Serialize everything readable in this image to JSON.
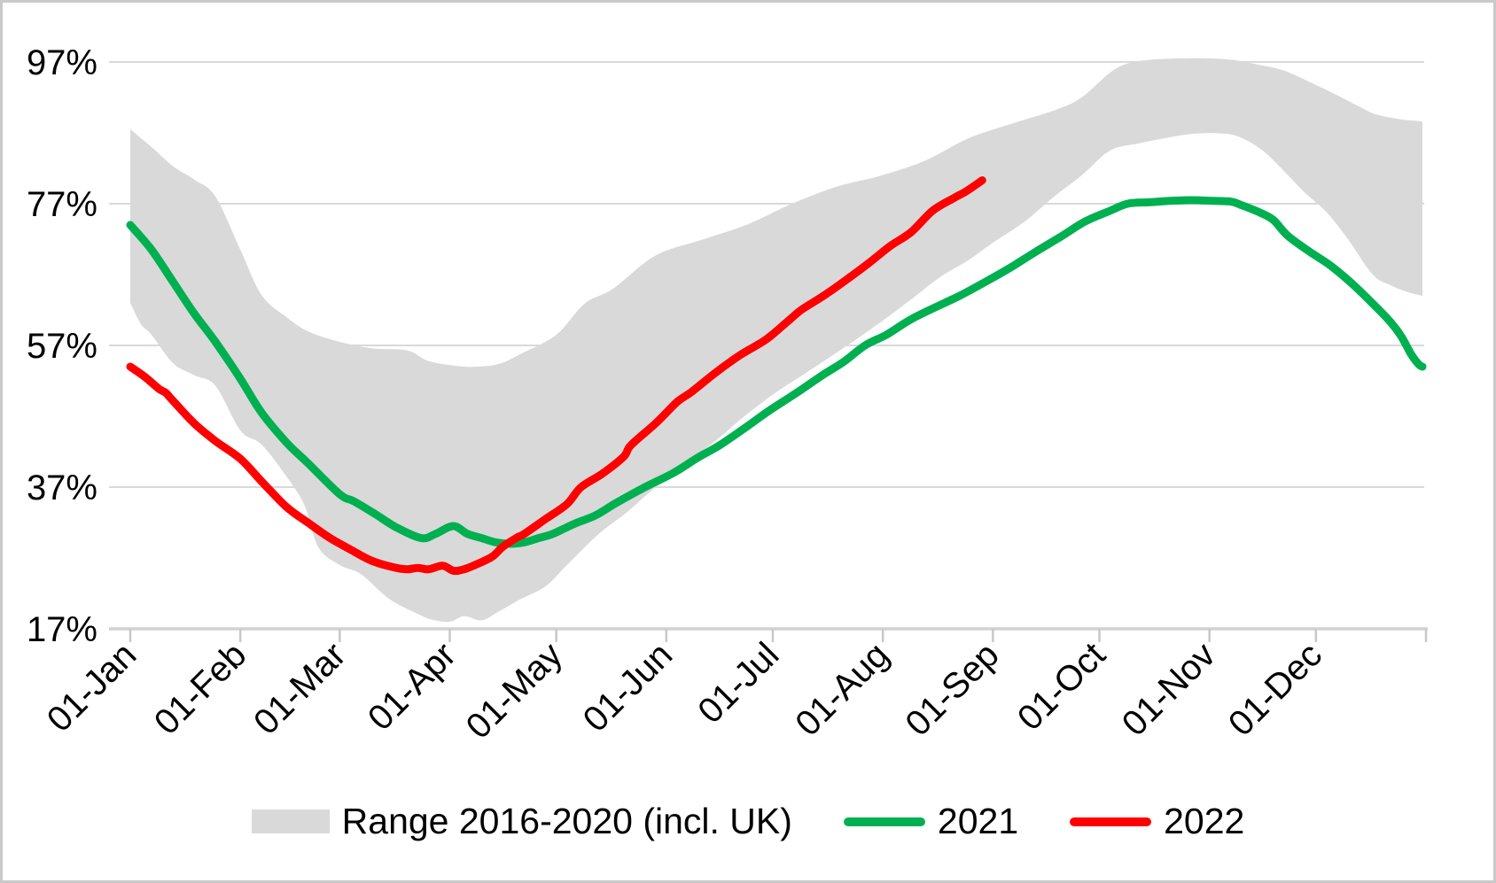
{
  "chart_data": {
    "type": "line",
    "title": "",
    "xlabel": "",
    "ylabel": "",
    "grid": "horizontal",
    "legend_position": "bottom",
    "y_axis": {
      "tick_labels": [
        "97%",
        "77%",
        "57%",
        "37%",
        "17%"
      ],
      "tick_values": [
        97,
        77,
        57,
        37,
        17
      ],
      "ylim": [
        17,
        97
      ]
    },
    "x_axis": {
      "tick_labels": [
        "01-Jan",
        "01-Feb",
        "01-Mar",
        "01-Apr",
        "01-May",
        "01-Jun",
        "01-Jul",
        "01-Aug",
        "01-Sep",
        "01-Oct",
        "01-Nov",
        "01-Dec"
      ],
      "tick_days": [
        0,
        31,
        59,
        90,
        120,
        151,
        181,
        212,
        243,
        273,
        304,
        334
      ],
      "domain_days": [
        0,
        364
      ],
      "end_tick_day": 365
    },
    "series": [
      {
        "name": "Range 2016-2020 (incl. UK)",
        "type": "band",
        "color": "#d9d9d9",
        "upper": [
          [
            0,
            87.5
          ],
          [
            6,
            85.0
          ],
          [
            12,
            82.3
          ],
          [
            18,
            80.4
          ],
          [
            24,
            78.0
          ],
          [
            31,
            70.5
          ],
          [
            37,
            64.1
          ],
          [
            44,
            61.0
          ],
          [
            50,
            59.0
          ],
          [
            59,
            57.5
          ],
          [
            68,
            56.6
          ],
          [
            78,
            56.3
          ],
          [
            84,
            54.8
          ],
          [
            92,
            54.1
          ],
          [
            98,
            54.0
          ],
          [
            104,
            54.4
          ],
          [
            110,
            55.8
          ],
          [
            120,
            58.5
          ],
          [
            128,
            62.9
          ],
          [
            136,
            65.0
          ],
          [
            148,
            69.7
          ],
          [
            161,
            71.9
          ],
          [
            174,
            74.1
          ],
          [
            186,
            76.9
          ],
          [
            199,
            79.4
          ],
          [
            211,
            80.9
          ],
          [
            224,
            83.1
          ],
          [
            236,
            86.2
          ],
          [
            249,
            88.4
          ],
          [
            261,
            90.3
          ],
          [
            268,
            92.0
          ],
          [
            276,
            95.5
          ],
          [
            281,
            96.8
          ],
          [
            287,
            97.3
          ],
          [
            295,
            97.5
          ],
          [
            305,
            97.5
          ],
          [
            312,
            97.2
          ],
          [
            318,
            96.6
          ],
          [
            325,
            95.8
          ],
          [
            333,
            94.0
          ],
          [
            340,
            92.3
          ],
          [
            347,
            90.5
          ],
          [
            351,
            89.6
          ],
          [
            358,
            88.9
          ],
          [
            364,
            88.6
          ]
        ],
        "lower": [
          [
            0,
            63.0
          ],
          [
            3,
            60.0
          ],
          [
            6,
            58.5
          ],
          [
            12,
            54.5
          ],
          [
            18,
            52.8
          ],
          [
            24,
            51.3
          ],
          [
            31,
            45.0
          ],
          [
            37,
            43.0
          ],
          [
            44,
            38.5
          ],
          [
            49,
            34.5
          ],
          [
            53,
            28.5
          ],
          [
            59,
            26.0
          ],
          [
            65,
            24.7
          ],
          [
            73,
            21.2
          ],
          [
            81,
            19.1
          ],
          [
            85,
            18.3
          ],
          [
            90,
            18.0
          ],
          [
            94,
            18.8
          ],
          [
            99,
            18.2
          ],
          [
            104,
            19.5
          ],
          [
            110,
            21.2
          ],
          [
            117,
            23.0
          ],
          [
            123,
            26.0
          ],
          [
            132,
            30.4
          ],
          [
            140,
            33.5
          ],
          [
            148,
            37.0
          ],
          [
            157,
            40.5
          ],
          [
            166,
            44.0
          ],
          [
            173,
            47.0
          ],
          [
            182,
            50.4
          ],
          [
            190,
            53.0
          ],
          [
            202,
            57.0
          ],
          [
            212,
            60.5
          ],
          [
            220,
            63.5
          ],
          [
            228,
            66.6
          ],
          [
            236,
            69.0
          ],
          [
            243,
            71.5
          ],
          [
            252,
            74.5
          ],
          [
            260,
            77.9
          ],
          [
            268,
            81.0
          ],
          [
            276,
            84.5
          ],
          [
            284,
            85.5
          ],
          [
            292,
            86.3
          ],
          [
            300,
            86.9
          ],
          [
            308,
            86.9
          ],
          [
            313,
            86.3
          ],
          [
            319,
            84.5
          ],
          [
            325,
            81.6
          ],
          [
            331,
            78.5
          ],
          [
            337,
            75.8
          ],
          [
            343,
            72.0
          ],
          [
            350,
            67.0
          ],
          [
            355,
            65.5
          ],
          [
            360,
            64.5
          ],
          [
            364,
            64.0
          ]
        ]
      },
      {
        "name": "2021",
        "type": "line",
        "color": "#00b050",
        "points": [
          [
            0,
            74.0
          ],
          [
            6,
            70.5
          ],
          [
            12,
            66.0
          ],
          [
            18,
            61.5
          ],
          [
            24,
            57.5
          ],
          [
            31,
            52.3
          ],
          [
            37,
            47.5
          ],
          [
            44,
            43.3
          ],
          [
            50,
            40.4
          ],
          [
            59,
            36.0
          ],
          [
            63,
            35.0
          ],
          [
            69,
            33.2
          ],
          [
            75,
            31.3
          ],
          [
            82,
            29.8
          ],
          [
            86,
            30.4
          ],
          [
            91,
            31.5
          ],
          [
            95,
            30.4
          ],
          [
            99,
            29.8
          ],
          [
            103,
            29.2
          ],
          [
            107,
            29.0
          ],
          [
            111,
            29.2
          ],
          [
            115,
            29.8
          ],
          [
            119,
            30.4
          ],
          [
            125,
            31.8
          ],
          [
            131,
            33.0
          ],
          [
            137,
            34.8
          ],
          [
            145,
            37.0
          ],
          [
            153,
            39.0
          ],
          [
            160,
            41.2
          ],
          [
            166,
            42.9
          ],
          [
            173,
            45.3
          ],
          [
            180,
            47.8
          ],
          [
            188,
            50.4
          ],
          [
            195,
            52.8
          ],
          [
            201,
            54.7
          ],
          [
            207,
            57.0
          ],
          [
            213,
            58.5
          ],
          [
            220,
            60.7
          ],
          [
            229,
            62.9
          ],
          [
            234,
            64.1
          ],
          [
            241,
            66.0
          ],
          [
            248,
            68.0
          ],
          [
            255,
            70.2
          ],
          [
            262,
            72.3
          ],
          [
            269,
            74.5
          ],
          [
            276,
            76.0
          ],
          [
            281,
            77.0
          ],
          [
            287,
            77.2
          ],
          [
            293,
            77.4
          ],
          [
            299,
            77.5
          ],
          [
            305,
            77.4
          ],
          [
            310,
            77.3
          ],
          [
            313,
            76.8
          ],
          [
            318,
            75.8
          ],
          [
            322,
            74.7
          ],
          [
            326,
            72.5
          ],
          [
            332,
            70.3
          ],
          [
            338,
            68.3
          ],
          [
            344,
            65.8
          ],
          [
            350,
            62.9
          ],
          [
            355,
            60.3
          ],
          [
            358,
            58.3
          ],
          [
            361,
            55.6
          ],
          [
            363,
            54.3
          ],
          [
            364,
            54.0
          ]
        ]
      },
      {
        "name": "2022",
        "type": "line",
        "color": "#ff0000",
        "points": [
          [
            0,
            54.0
          ],
          [
            4,
            52.6
          ],
          [
            8,
            50.9
          ],
          [
            10,
            50.3
          ],
          [
            12,
            49.2
          ],
          [
            18,
            46.0
          ],
          [
            24,
            43.5
          ],
          [
            31,
            41.0
          ],
          [
            37,
            37.8
          ],
          [
            44,
            34.2
          ],
          [
            50,
            32.0
          ],
          [
            56,
            29.9
          ],
          [
            62,
            28.2
          ],
          [
            68,
            26.6
          ],
          [
            74,
            25.7
          ],
          [
            78,
            25.4
          ],
          [
            81,
            25.6
          ],
          [
            84,
            25.4
          ],
          [
            88,
            25.9
          ],
          [
            91,
            25.2
          ],
          [
            94,
            25.4
          ],
          [
            98,
            26.2
          ],
          [
            102,
            27.2
          ],
          [
            105,
            28.6
          ],
          [
            109,
            29.9
          ],
          [
            111,
            30.4
          ],
          [
            117,
            32.5
          ],
          [
            123,
            34.6
          ],
          [
            127,
            37.0
          ],
          [
            133,
            38.9
          ],
          [
            139,
            41.3
          ],
          [
            141,
            42.9
          ],
          [
            148,
            46.0
          ],
          [
            154,
            49.0
          ],
          [
            158,
            50.4
          ],
          [
            165,
            53.2
          ],
          [
            172,
            55.7
          ],
          [
            179,
            57.8
          ],
          [
            185,
            60.3
          ],
          [
            189,
            62.0
          ],
          [
            195,
            63.9
          ],
          [
            201,
            66.0
          ],
          [
            208,
            68.6
          ],
          [
            214,
            71.0
          ],
          [
            220,
            73.0
          ],
          [
            226,
            76.0
          ],
          [
            232,
            77.8
          ],
          [
            235,
            78.6
          ],
          [
            238,
            79.6
          ],
          [
            240,
            80.3
          ]
        ]
      }
    ],
    "legend": {
      "items": [
        {
          "label": "Range 2016-2020 (incl. UK)",
          "color": "#d9d9d9",
          "swatch": "rect"
        },
        {
          "label": "2021",
          "color": "#00b050",
          "swatch": "line"
        },
        {
          "label": "2022",
          "color": "#ff0000",
          "swatch": "line"
        }
      ]
    }
  },
  "colors": {
    "background": "#ffffff",
    "border": "#c9c9c9",
    "gridline": "#d9d9d9",
    "axis": "#d2d2d2",
    "text": "#000000",
    "band": "#d9d9d9",
    "series_2021": "#00b050",
    "series_2022": "#ff0000"
  }
}
